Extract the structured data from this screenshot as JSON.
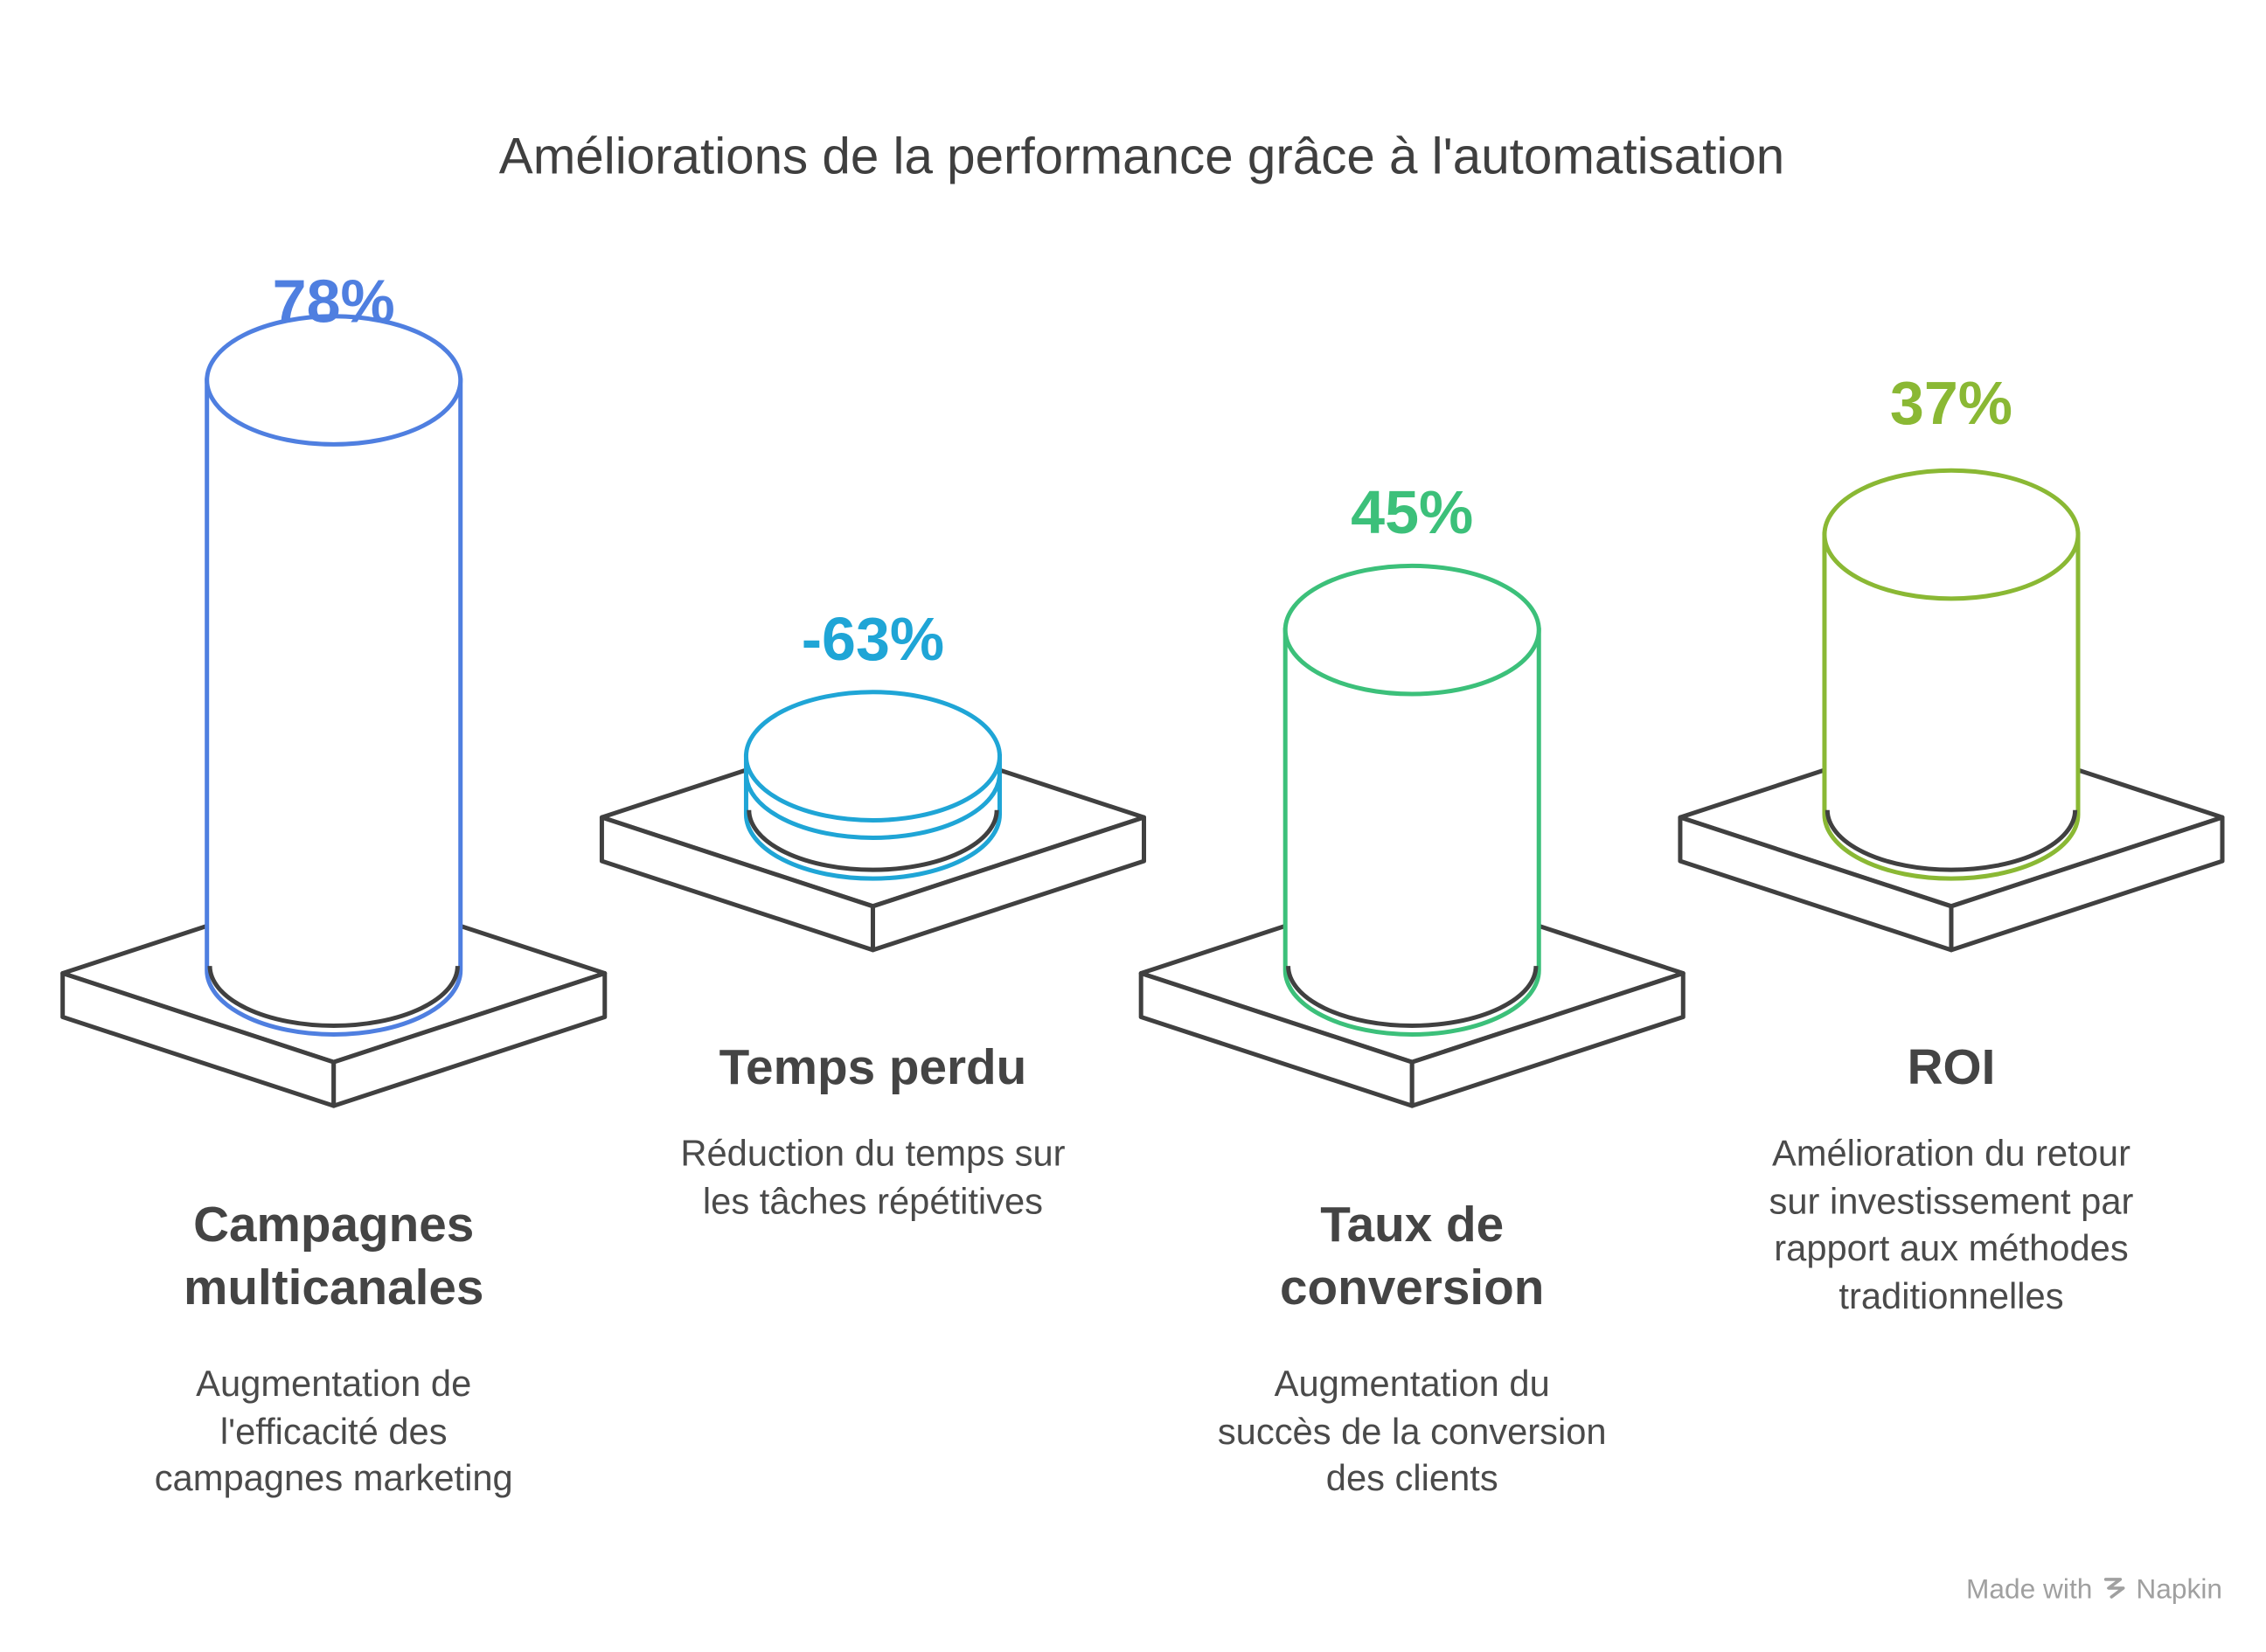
{
  "title": "Améliorations de la performance grâce à l'automatisation",
  "watermark": {
    "prefix": "Made with",
    "brand": "Napkin",
    "icon": "napkin-logo-icon"
  },
  "colors": {
    "outline": "#404040",
    "campagnes": "#4f7fe0",
    "temps": "#1fa5d6",
    "taux": "#3cc07a",
    "roi": "#8ab834"
  },
  "items": [
    {
      "key": "campagnes",
      "value_label": "78%",
      "title_lines": [
        "Campagnes",
        "multicanales"
      ],
      "desc_lines": [
        "Augmentation de",
        "l'efficacité des",
        "campagnes marketing"
      ]
    },
    {
      "key": "temps",
      "value_label": "-63%",
      "title_lines": [
        "Temps perdu"
      ],
      "desc_lines": [
        "Réduction du temps sur",
        "les tâches répétitives"
      ]
    },
    {
      "key": "taux",
      "value_label": "45%",
      "title_lines": [
        "Taux de",
        "conversion"
      ],
      "desc_lines": [
        "Augmentation du",
        "succès de la conversion",
        "des clients"
      ]
    },
    {
      "key": "roi",
      "value_label": "37%",
      "title_lines": [
        "ROI"
      ],
      "desc_lines": [
        "Amélioration du retour",
        "sur investissement par",
        "rapport aux méthodes",
        "traditionnelles"
      ]
    }
  ],
  "chart_data": {
    "type": "bar",
    "title": "Améliorations de la performance grâce à l'automatisation",
    "categories": [
      "Campagnes multicanales",
      "Temps perdu",
      "Taux de conversion",
      "ROI"
    ],
    "values": [
      78,
      -63,
      45,
      37
    ],
    "unit": "%",
    "grid": false,
    "legend": "none"
  }
}
